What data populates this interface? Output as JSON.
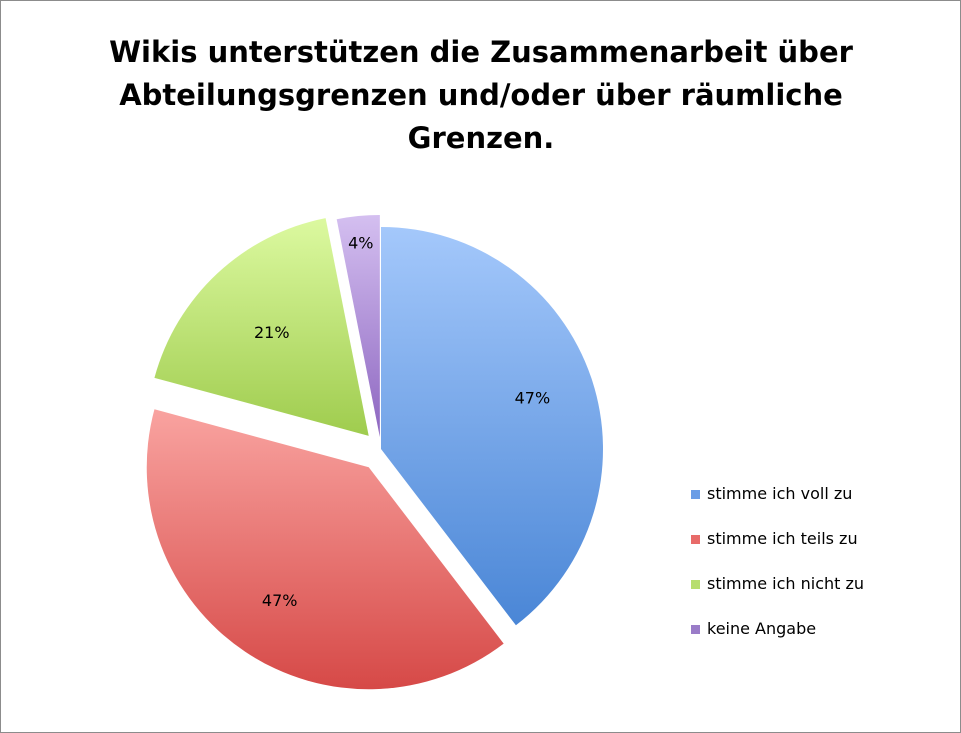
{
  "chart_data": {
    "type": "pie",
    "title_lines": [
      "Wikis unterstützen die Zusammenarbeit über",
      "Abteilungsgrenzen und/oder über räumliche",
      "Grenzen."
    ],
    "slices": [
      {
        "name": "stimme ich voll zu",
        "value": 28,
        "label": "47%",
        "color": "#6a9de6",
        "exploded": false
      },
      {
        "name": "stimme ich teils zu",
        "value": 28,
        "label": "47%",
        "color": "#e86b69",
        "exploded": true
      },
      {
        "name": "stimme ich nicht zu",
        "value": 12.5,
        "label": "21%",
        "color": "#b7de6e",
        "exploded": true
      },
      {
        "name": "keine Angabe",
        "value": 2.2,
        "label": "4%",
        "color": "#9a7cc8",
        "exploded": true
      }
    ],
    "legend_position": "right"
  },
  "colors": {
    "voll_light": "#a4c8fb",
    "voll_dark": "#4a86d6",
    "teils_light": "#f9a3a0",
    "teils_dark": "#d64947",
    "nicht_light": "#dcf9a0",
    "nicht_dark": "#9fcc4e",
    "keine_light": "#d4bff0",
    "keine_dark": "#8d66c0"
  }
}
